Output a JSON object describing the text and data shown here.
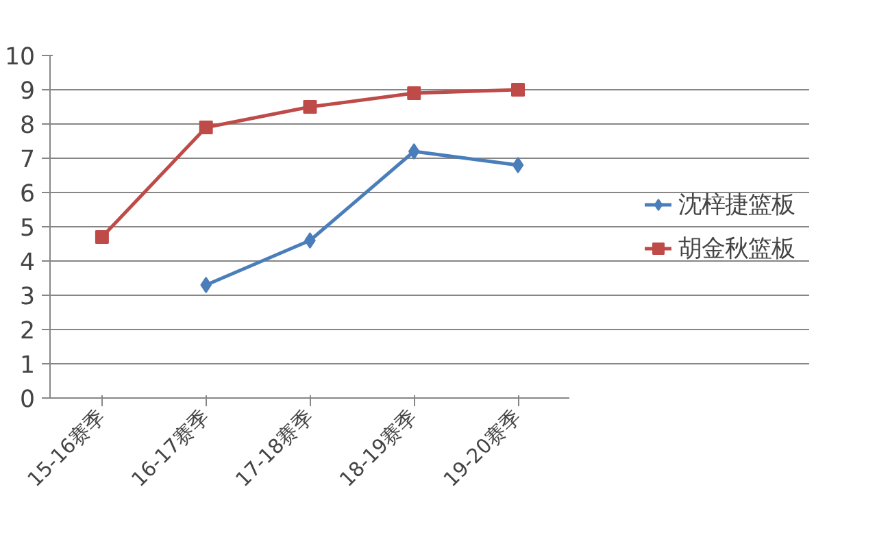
{
  "chart_data": {
    "type": "line",
    "categories": [
      "15-16赛季",
      "16-17赛季",
      "17-18赛季",
      "18-19赛季",
      "19-20赛季"
    ],
    "series": [
      {
        "name": "沈梓捷篮板",
        "color": "#4a7ebb",
        "marker": "diamond",
        "values": [
          null,
          3.3,
          4.6,
          7.2,
          6.8
        ]
      },
      {
        "name": "胡金秋篮板",
        "color": "#be4b48",
        "marker": "square",
        "values": [
          4.7,
          7.9,
          8.5,
          8.9,
          9.0
        ]
      }
    ],
    "ylim": [
      0,
      10
    ],
    "yticks": [
      0,
      1,
      2,
      3,
      4,
      5,
      6,
      7,
      8,
      9,
      10
    ],
    "grid": "y",
    "legend": "right",
    "line_style": "solid"
  }
}
